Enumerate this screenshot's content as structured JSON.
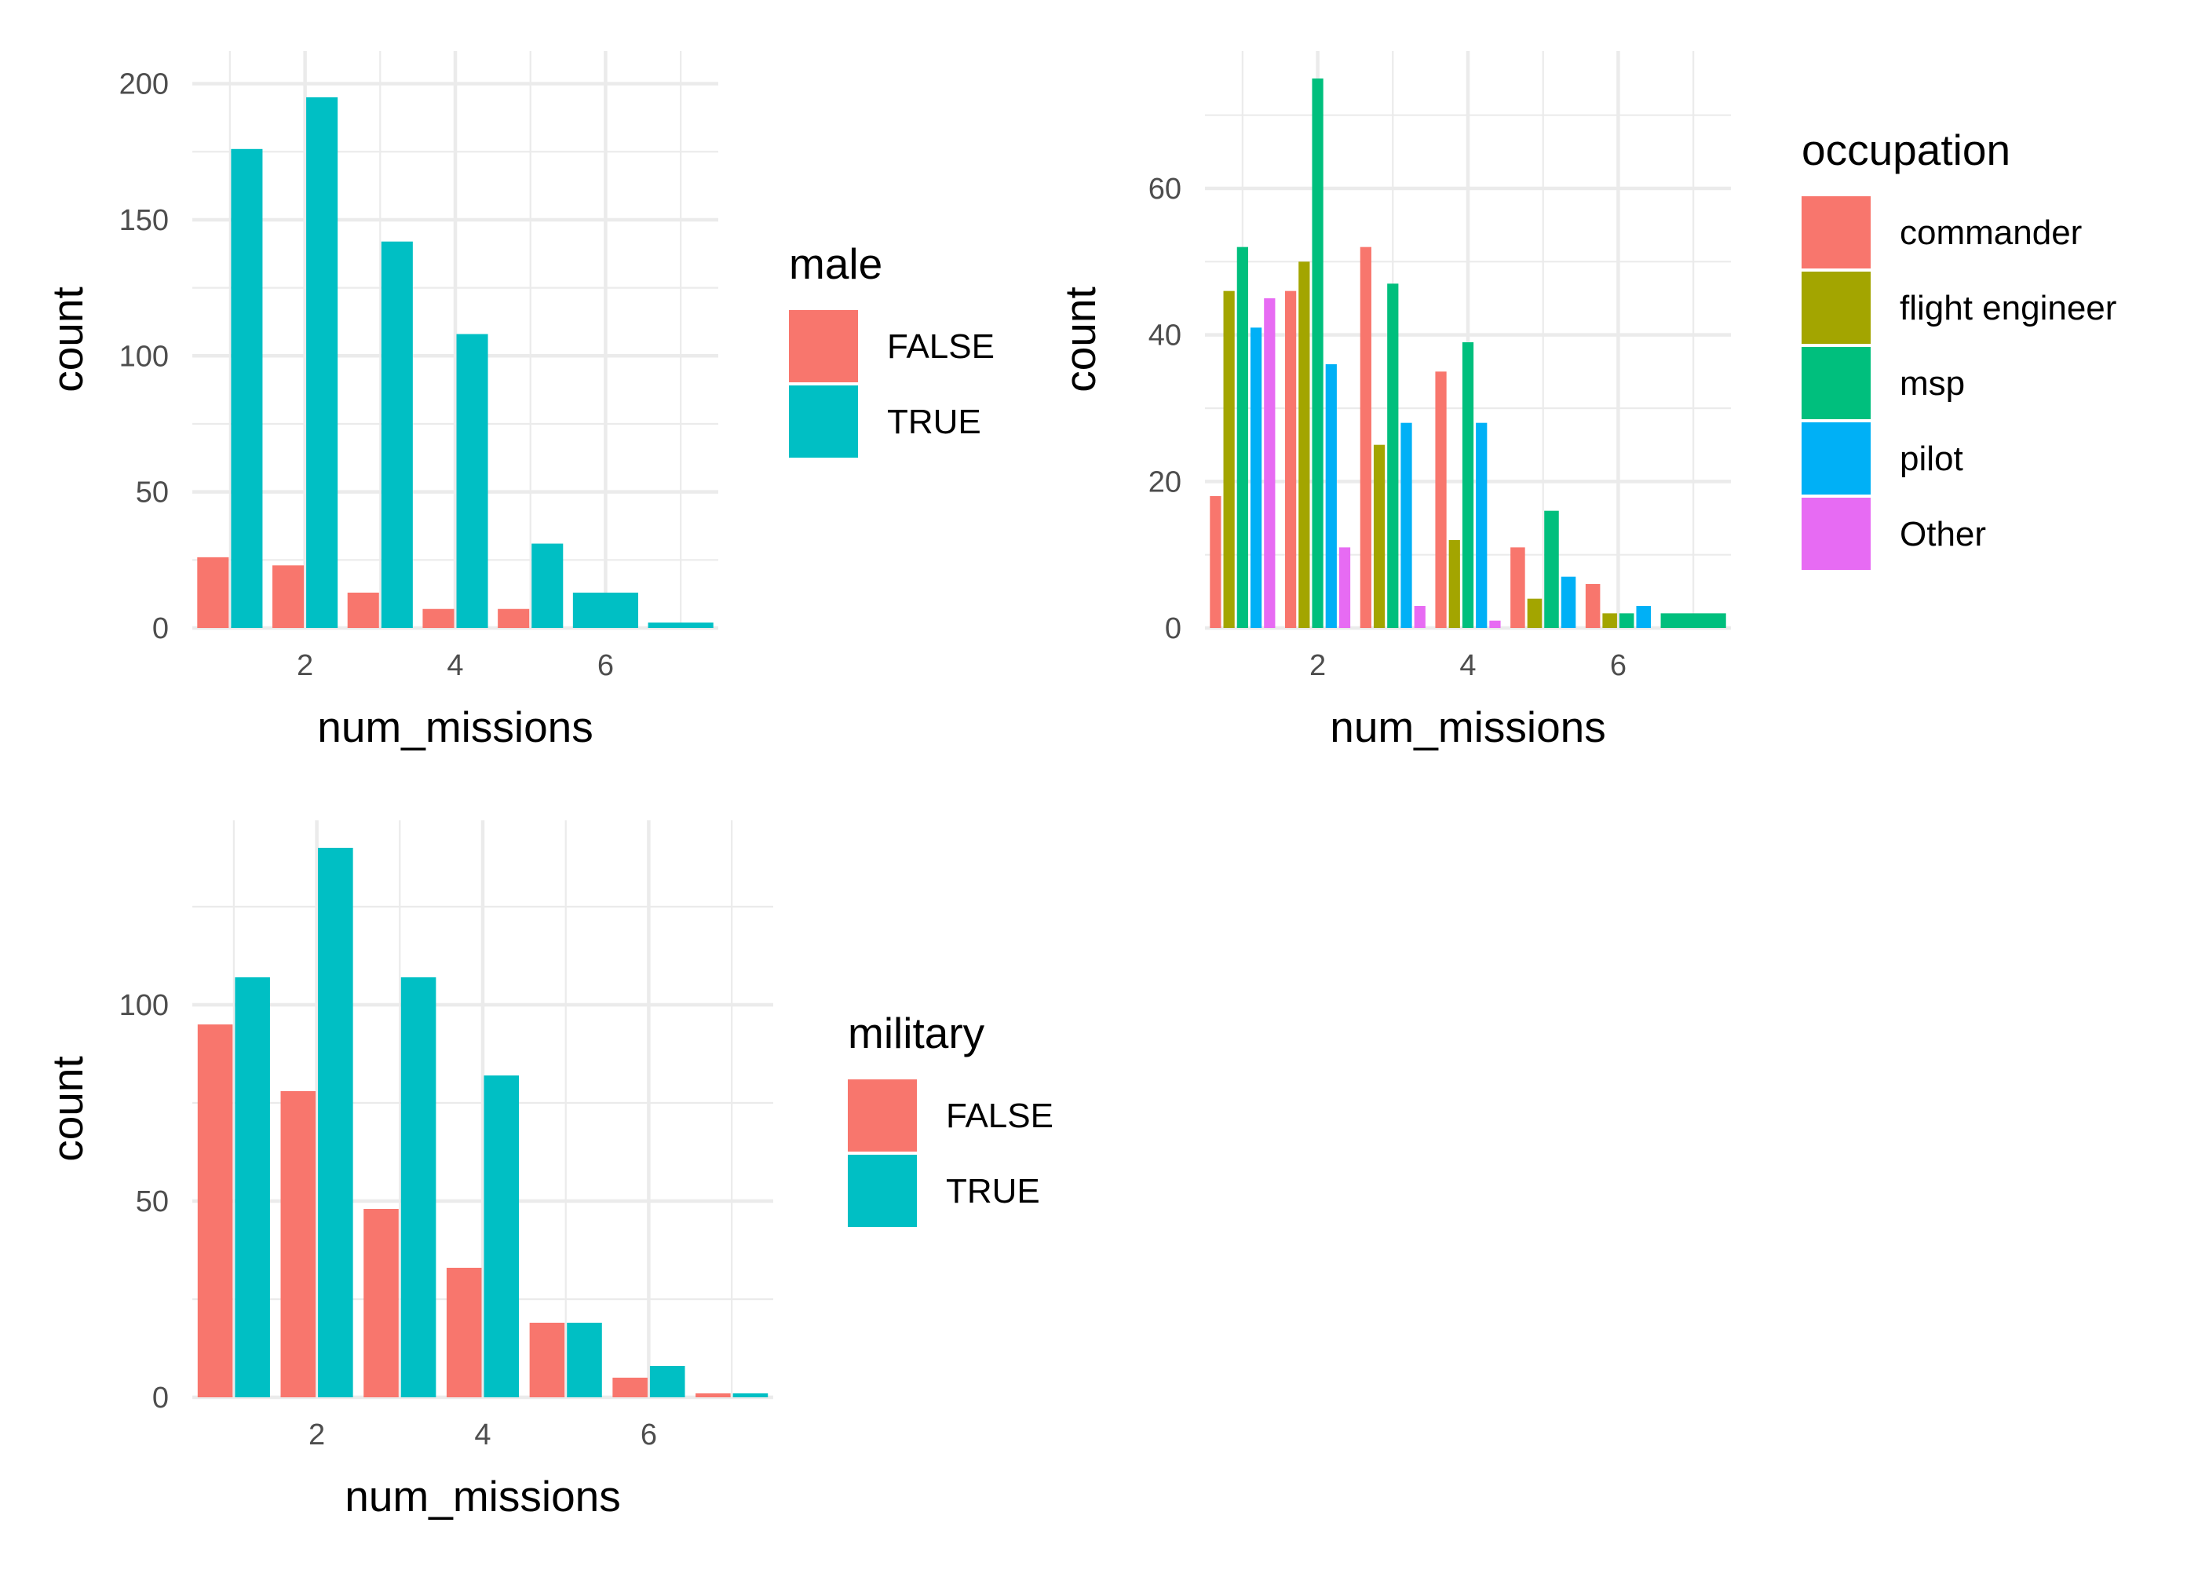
{
  "chart_data": [
    {
      "type": "bar",
      "position": "dodge",
      "title": "",
      "xlabel": "num_missions",
      "ylabel": "count",
      "xlim": [
        0.5,
        7.5
      ],
      "ylim": [
        0,
        200
      ],
      "x_ticks": [
        2,
        4,
        6
      ],
      "y_ticks": [
        0,
        50,
        100,
        150,
        200
      ],
      "grid": true,
      "legend": {
        "title": "male",
        "placement": "right"
      },
      "series": [
        {
          "name": "FALSE",
          "color": "#F8766D",
          "points": [
            [
              1,
              26
            ],
            [
              2,
              23
            ],
            [
              3,
              13
            ],
            [
              4,
              7
            ],
            [
              5,
              7
            ]
          ]
        },
        {
          "name": "TRUE",
          "color": "#00BFC4",
          "points": [
            [
              1,
              176
            ],
            [
              2,
              195
            ],
            [
              3,
              142
            ],
            [
              4,
              108
            ],
            [
              5,
              31
            ],
            [
              6,
              13
            ],
            [
              7,
              2
            ]
          ]
        }
      ]
    },
    {
      "type": "bar",
      "position": "dodge",
      "title": "",
      "xlabel": "num_missions",
      "ylabel": "count",
      "xlim": [
        0.5,
        7.5
      ],
      "ylim": [
        0,
        75
      ],
      "x_ticks": [
        2,
        4,
        6
      ],
      "y_ticks": [
        0,
        20,
        40,
        60
      ],
      "grid": true,
      "legend": {
        "title": "occupation",
        "placement": "right"
      },
      "series": [
        {
          "name": "commander",
          "color": "#F8766D",
          "points": [
            [
              1,
              18
            ],
            [
              2,
              46
            ],
            [
              3,
              52
            ],
            [
              4,
              35
            ],
            [
              5,
              11
            ],
            [
              6,
              6
            ]
          ]
        },
        {
          "name": "flight engineer",
          "color": "#A3A500",
          "points": [
            [
              1,
              46
            ],
            [
              2,
              50
            ],
            [
              3,
              25
            ],
            [
              4,
              12
            ],
            [
              5,
              4
            ],
            [
              6,
              2
            ]
          ]
        },
        {
          "name": "msp",
          "color": "#00BF7D",
          "points": [
            [
              1,
              52
            ],
            [
              2,
              75
            ],
            [
              3,
              47
            ],
            [
              4,
              39
            ],
            [
              5,
              16
            ],
            [
              6,
              2
            ],
            [
              7,
              2
            ]
          ]
        },
        {
          "name": "pilot",
          "color": "#00B0F6",
          "points": [
            [
              1,
              41
            ],
            [
              2,
              36
            ],
            [
              3,
              28
            ],
            [
              4,
              28
            ],
            [
              5,
              7
            ],
            [
              6,
              3
            ]
          ]
        },
        {
          "name": "Other",
          "color": "#E76BF3",
          "points": [
            [
              1,
              45
            ],
            [
              2,
              11
            ],
            [
              3,
              3
            ],
            [
              4,
              1
            ]
          ]
        }
      ]
    },
    {
      "type": "bar",
      "position": "dodge",
      "title": "",
      "xlabel": "num_missions",
      "ylabel": "count",
      "xlim": [
        0.5,
        7.5
      ],
      "ylim": [
        0,
        140
      ],
      "x_ticks": [
        2,
        4,
        6
      ],
      "y_ticks": [
        0,
        50,
        100
      ],
      "grid": true,
      "legend": {
        "title": "military",
        "placement": "right"
      },
      "series": [
        {
          "name": "FALSE",
          "color": "#F8766D",
          "points": [
            [
              1,
              95
            ],
            [
              2,
              78
            ],
            [
              3,
              48
            ],
            [
              4,
              33
            ],
            [
              5,
              19
            ],
            [
              6,
              5
            ],
            [
              7,
              1
            ]
          ]
        },
        {
          "name": "TRUE",
          "color": "#00BFC4",
          "points": [
            [
              1,
              107
            ],
            [
              2,
              140
            ],
            [
              3,
              107
            ],
            [
              4,
              82
            ],
            [
              5,
              19
            ],
            [
              6,
              8
            ],
            [
              7,
              1
            ]
          ]
        }
      ]
    }
  ]
}
